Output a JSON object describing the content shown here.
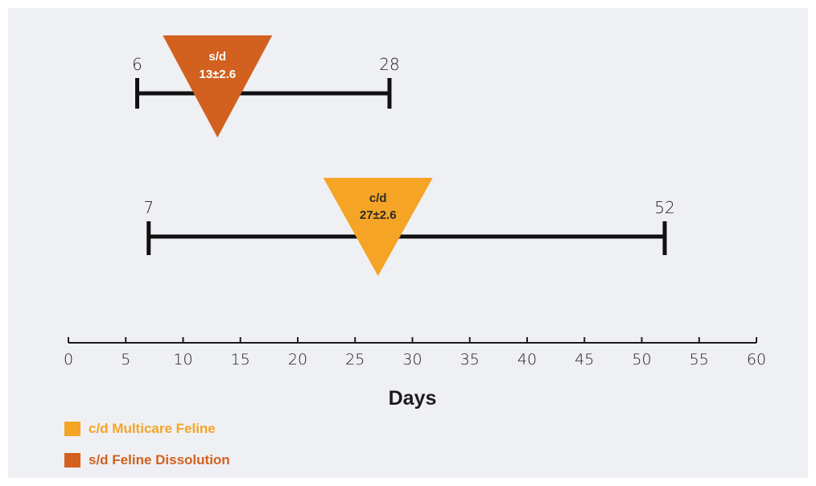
{
  "chart_data": {
    "type": "range",
    "xlabel": "Days",
    "xlim": [
      0,
      60
    ],
    "xticks": [
      0,
      5,
      10,
      15,
      20,
      25,
      30,
      35,
      40,
      45,
      50,
      55,
      60
    ],
    "series": [
      {
        "name": "s/d Feline Dissolution",
        "short_label": "s/d",
        "min": 6,
        "max": 28,
        "mean": 13,
        "sd": 2.6,
        "mean_label": "13±2.6",
        "min_label": "6",
        "max_label": "28",
        "color": "#d2601f",
        "text_color": "#ffffff"
      },
      {
        "name": "c/d Multicare Feline",
        "short_label": "c/d",
        "min": 7,
        "max": 52,
        "mean": 27,
        "sd": 2.6,
        "mean_label": "27±2.6",
        "min_label": "7",
        "max_label": "52",
        "color": "#f5a425",
        "text_color": "#2a2a2a"
      }
    ],
    "legend": [
      {
        "label": "c/d Multicare Feline",
        "color": "#f5a425"
      },
      {
        "label": "s/d Feline Dissolution",
        "color": "#d2601f"
      }
    ],
    "legend_position": "bottom-left"
  }
}
